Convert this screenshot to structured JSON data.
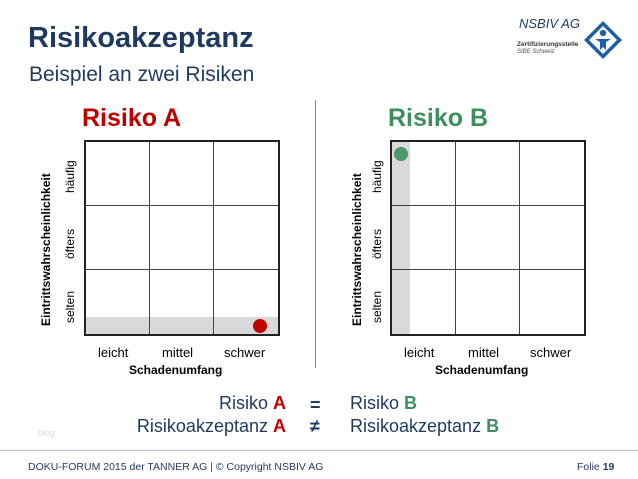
{
  "header": {
    "title": "Risikoakzeptanz",
    "subtitle": "Beispiel an zwei Risiken"
  },
  "logo": {
    "name": "NSBIV AG",
    "line1": "Zertifizierungsstelle",
    "line2": "SIBE Schweiz",
    "icon": "person-diamond-icon"
  },
  "matrix_a": {
    "title": "Risiko A",
    "color": "#c00000",
    "y_axis_title": "Eintrittswahrscheinlichkeit",
    "y_labels": [
      "selten",
      "öfters",
      "häufig"
    ],
    "x_labels": [
      "leicht",
      "mittel",
      "schwer"
    ],
    "x_axis_title": "Schadenumfang",
    "point": {
      "impact": "schwer",
      "likelihood": "selten"
    },
    "highlight": "likelihood-selten-row",
    "dot_color": "#c00000"
  },
  "matrix_b": {
    "title": "Risiko B",
    "color": "#3e8e5e",
    "y_axis_title": "Eintrittswahrscheinlichkeit",
    "y_labels": [
      "selten",
      "öfters",
      "häufig"
    ],
    "x_labels": [
      "leicht",
      "mittel",
      "schwer"
    ],
    "x_axis_title": "Schadenumfang",
    "point": {
      "impact": "leicht",
      "likelihood": "häufig"
    },
    "highlight": "impact-leicht-column",
    "dot_color": "#4a9a6a"
  },
  "comparison": {
    "row1_left": "Risiko ",
    "row1_left_bold": "A",
    "row1_op": "=",
    "row1_right": "Risiko ",
    "row1_right_bold": "B",
    "row2_left": "Risikoakzeptanz ",
    "row2_left_bold": "A",
    "row2_op": "≠",
    "row2_right": "Risikoakzeptanz ",
    "row2_right_bold": "B",
    "accent_a": "#c00000",
    "accent_b": "#3e8e5e"
  },
  "watermark": "blog",
  "footer": {
    "left": "DOKU-FORUM 2015 der TANNER AG | © Copyright NSBIV AG",
    "folie_label": "Folie ",
    "folie_number": "19"
  }
}
